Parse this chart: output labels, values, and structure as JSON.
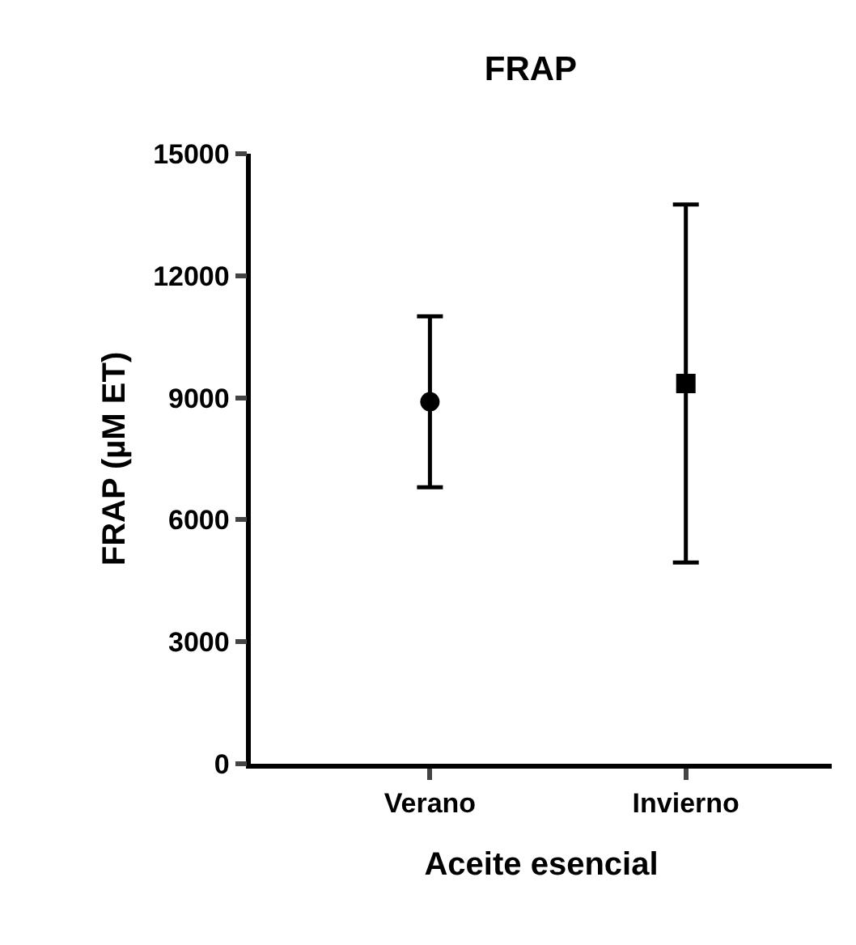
{
  "chart_data": {
    "type": "scatter",
    "title": "FRAP",
    "xlabel": "Aceite esencial",
    "ylabel": "FRAP (µM ET)",
    "categories": [
      "Verano",
      "Invierno"
    ],
    "series": [
      {
        "color": "#000000",
        "marker": "circle",
        "values": [
          8900,
          null
        ],
        "errors": [
          2100,
          null
        ]
      },
      {
        "color": "#000000",
        "marker": "square",
        "values": [
          null,
          9350
        ],
        "errors": [
          null,
          4400
        ]
      }
    ],
    "ylim": [
      0,
      15000
    ],
    "yticks": [
      0,
      3000,
      6000,
      9000,
      12000,
      15000
    ]
  }
}
